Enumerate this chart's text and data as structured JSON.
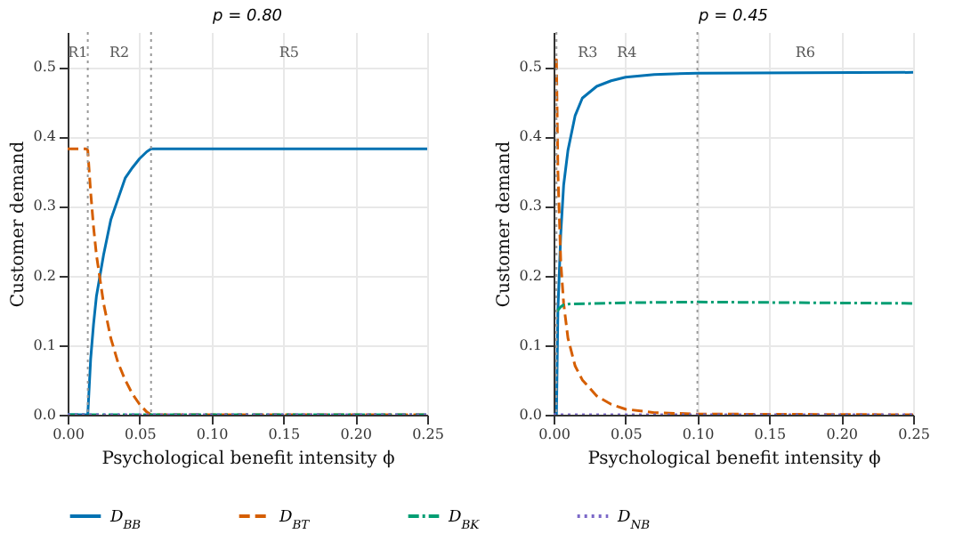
{
  "chart_data": [
    {
      "type": "line",
      "title": "p = 0.80",
      "xlabel": "Psychological benefit intensity ϕ",
      "ylabel": "Customer demand",
      "xlim": [
        0,
        0.25
      ],
      "ylim": [
        0,
        0.55
      ],
      "xticks": [
        {
          "value": 0,
          "label": "0.00"
        },
        0.05,
        {
          "value": 0.1,
          "label": "0.10"
        },
        0.15,
        {
          "value": 0.2,
          "label": "0.20"
        },
        0.25
      ],
      "yticks": [
        {
          "value": 0,
          "label": "0.0"
        },
        0.1,
        0.2,
        0.3,
        0.4,
        0.5
      ],
      "grid": true,
      "legend": "bottom",
      "series": [
        {
          "name": "D$_{BB}$",
          "color": "#0072b2",
          "line_style": "solid",
          "x": [
            0,
            0.014,
            0.016,
            0.018,
            0.02,
            0.025,
            0.03,
            0.035,
            0.04,
            0.045,
            0.05,
            0.055,
            0.058,
            0.25
          ],
          "values": [
            0,
            0,
            0.08,
            0.13,
            0.17,
            0.23,
            0.28,
            0.31,
            0.34,
            0.355,
            0.368,
            0.378,
            0.382,
            0.382
          ]
        },
        {
          "name": "D$_{BT}$",
          "color": "#d55e00",
          "line_style": "dashed",
          "x": [
            0,
            0.013,
            0.014,
            0.016,
            0.018,
            0.02,
            0.025,
            0.03,
            0.035,
            0.04,
            0.045,
            0.05,
            0.055,
            0.058,
            0.25
          ],
          "values": [
            0.382,
            0.382,
            0.38,
            0.32,
            0.27,
            0.23,
            0.16,
            0.11,
            0.075,
            0.05,
            0.03,
            0.015,
            0.004,
            0,
            0
          ]
        },
        {
          "name": "D$_{BK}$",
          "color": "#009e73",
          "line_style": "dashdot",
          "x": [
            0,
            0.25
          ],
          "values": [
            0,
            0
          ]
        },
        {
          "name": "D$_{NB}$",
          "color": "#7b68c8",
          "line_style": "dotted",
          "x": [
            0,
            0.25
          ],
          "values": [
            0,
            0
          ]
        }
      ],
      "ref_lines": [
        {
          "axis": "x",
          "value": 0.014,
          "label": null,
          "color": "#999999",
          "line_style": "dotted"
        },
        {
          "axis": "x",
          "value": 0.058,
          "label": null,
          "color": "#999999",
          "line_style": "dotted"
        }
      ],
      "annotations": [
        "R1",
        "R2",
        "R5"
      ]
    },
    {
      "type": "line",
      "title": "p = 0.45",
      "xlabel": "Psychological benefit intensity ϕ",
      "ylabel": "Customer demand",
      "xlim": [
        0,
        0.25
      ],
      "ylim": [
        0,
        0.55
      ],
      "xticks": [
        {
          "value": 0,
          "label": "0.00"
        },
        0.05,
        {
          "value": 0.1,
          "label": "0.10"
        },
        0.15,
        {
          "value": 0.2,
          "label": "0.20"
        },
        0.25
      ],
      "yticks": [
        {
          "value": 0,
          "label": "0.0"
        },
        0.1,
        0.2,
        0.3,
        0.4,
        0.5
      ],
      "grid": true,
      "series": [
        {
          "name": "D$_{BB}$",
          "color": "#0072b2",
          "line_style": "solid",
          "x": [
            0,
            0.002,
            0.003,
            0.005,
            0.007,
            0.01,
            0.015,
            0.02,
            0.03,
            0.04,
            0.05,
            0.07,
            0.1,
            0.25
          ],
          "values": [
            0,
            0,
            0.15,
            0.26,
            0.33,
            0.38,
            0.43,
            0.455,
            0.472,
            0.48,
            0.485,
            0.489,
            0.491,
            0.492
          ]
        },
        {
          "name": "D$_{BT}$",
          "color": "#d55e00",
          "line_style": "dashed",
          "x": [
            0.001,
            0.002,
            0.003,
            0.005,
            0.007,
            0.01,
            0.015,
            0.02,
            0.03,
            0.04,
            0.05,
            0.07,
            0.1,
            0.25
          ],
          "values": [
            0.51,
            0.51,
            0.35,
            0.22,
            0.16,
            0.11,
            0.07,
            0.05,
            0.027,
            0.015,
            0.008,
            0.003,
            0.001,
            0
          ]
        },
        {
          "name": "D$_{BK}$",
          "color": "#009e73",
          "line_style": "dashdot",
          "x": [
            0.002,
            0.005,
            0.007,
            0.01,
            0.05,
            0.1,
            0.25
          ],
          "values": [
            0.148,
            0.155,
            0.158,
            0.159,
            0.161,
            0.162,
            0.16
          ]
        },
        {
          "name": "D$_{NB}$",
          "color": "#7b68c8",
          "line_style": "dotted",
          "x": [
            0,
            0.25
          ],
          "values": [
            0,
            0
          ]
        }
      ],
      "ref_lines": [
        {
          "axis": "x",
          "value": 0.002,
          "label": null,
          "color": "#999999",
          "line_style": "dotted"
        },
        {
          "axis": "x",
          "value": 0.1,
          "label": null,
          "color": "#999999",
          "line_style": "dotted"
        }
      ],
      "annotations": [
        "R3",
        "R4",
        "R6"
      ]
    }
  ]
}
